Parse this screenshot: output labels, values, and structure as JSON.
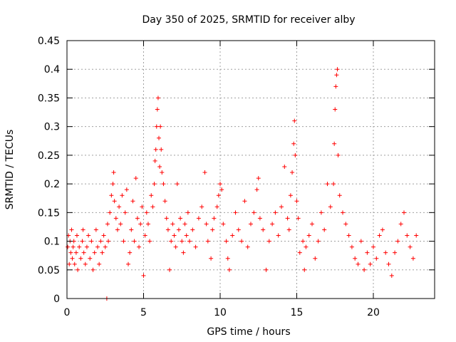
{
  "chart_data": {
    "type": "scatter",
    "title": "Day 350 of 2025, SRMTID for receiver alby",
    "xlabel": "GPS time / hours",
    "ylabel": "SRMTID / TECUs",
    "xlim": [
      0,
      24
    ],
    "ylim": [
      0,
      0.45
    ],
    "x_ticks": [
      0,
      5,
      10,
      15,
      20
    ],
    "x_tick_labels": [
      "0",
      "5",
      "10",
      "15",
      "20"
    ],
    "y_ticks": [
      0,
      0.05,
      0.1,
      0.15,
      0.2,
      0.25,
      0.3,
      0.35,
      0.4,
      0.45
    ],
    "y_tick_labels": [
      "0",
      "0.05",
      "0.1",
      "0.15",
      "0.2",
      "0.25",
      "0.3",
      "0.35",
      "0.4",
      "0.45"
    ],
    "grid": true,
    "marker": "+",
    "series": [
      {
        "name": "SRMTID",
        "color": "#ff0000",
        "points": [
          [
            0.05,
            0.09
          ],
          [
            0.1,
            0.11
          ],
          [
            0.15,
            0.06
          ],
          [
            0.2,
            0.1
          ],
          [
            0.25,
            0.08
          ],
          [
            0.3,
            0.12
          ],
          [
            0.35,
            0.07
          ],
          [
            0.4,
            0.09
          ],
          [
            0.45,
            0.1
          ],
          [
            0.5,
            0.06
          ],
          [
            0.6,
            0.08
          ],
          [
            0.65,
            0.11
          ],
          [
            0.7,
            0.05
          ],
          [
            0.8,
            0.09
          ],
          [
            0.9,
            0.07
          ],
          [
            1.0,
            0.1
          ],
          [
            1.05,
            0.12
          ],
          [
            1.1,
            0.08
          ],
          [
            1.2,
            0.06
          ],
          [
            1.3,
            0.09
          ],
          [
            1.4,
            0.11
          ],
          [
            1.5,
            0.07
          ],
          [
            1.6,
            0.1
          ],
          [
            1.7,
            0.05
          ],
          [
            1.8,
            0.08
          ],
          [
            1.9,
            0.12
          ],
          [
            2.0,
            0.09
          ],
          [
            2.1,
            0.06
          ],
          [
            2.2,
            0.1
          ],
          [
            2.3,
            0.08
          ],
          [
            2.4,
            0.11
          ],
          [
            2.5,
            0.09
          ],
          [
            2.6,
            0.0
          ],
          [
            2.65,
            0.13
          ],
          [
            2.7,
            0.1
          ],
          [
            2.8,
            0.15
          ],
          [
            2.9,
            0.18
          ],
          [
            3.0,
            0.2
          ],
          [
            3.05,
            0.22
          ],
          [
            3.1,
            0.17
          ],
          [
            3.2,
            0.14
          ],
          [
            3.3,
            0.12
          ],
          [
            3.4,
            0.16
          ],
          [
            3.5,
            0.13
          ],
          [
            3.6,
            0.18
          ],
          [
            3.7,
            0.1
          ],
          [
            3.8,
            0.15
          ],
          [
            3.9,
            0.19
          ],
          [
            4.0,
            0.06
          ],
          [
            4.1,
            0.08
          ],
          [
            4.2,
            0.12
          ],
          [
            4.3,
            0.17
          ],
          [
            4.4,
            0.1
          ],
          [
            4.5,
            0.21
          ],
          [
            4.6,
            0.14
          ],
          [
            4.7,
            0.09
          ],
          [
            4.8,
            0.13
          ],
          [
            4.9,
            0.16
          ],
          [
            5.0,
            0.04
          ],
          [
            5.1,
            0.11
          ],
          [
            5.2,
            0.15
          ],
          [
            5.3,
            0.13
          ],
          [
            5.4,
            0.1
          ],
          [
            5.5,
            0.18
          ],
          [
            5.6,
            0.16
          ],
          [
            5.7,
            0.2
          ],
          [
            5.75,
            0.24
          ],
          [
            5.8,
            0.26
          ],
          [
            5.85,
            0.3
          ],
          [
            5.9,
            0.33
          ],
          [
            5.95,
            0.35
          ],
          [
            6.0,
            0.28
          ],
          [
            6.05,
            0.23
          ],
          [
            6.1,
            0.3
          ],
          [
            6.15,
            0.26
          ],
          [
            6.2,
            0.22
          ],
          [
            6.3,
            0.2
          ],
          [
            6.4,
            0.17
          ],
          [
            6.5,
            0.14
          ],
          [
            6.6,
            0.12
          ],
          [
            6.7,
            0.05
          ],
          [
            6.8,
            0.1
          ],
          [
            6.9,
            0.13
          ],
          [
            7.0,
            0.11
          ],
          [
            7.1,
            0.09
          ],
          [
            7.2,
            0.2
          ],
          [
            7.3,
            0.12
          ],
          [
            7.4,
            0.14
          ],
          [
            7.5,
            0.1
          ],
          [
            7.6,
            0.08
          ],
          [
            7.7,
            0.13
          ],
          [
            7.8,
            0.11
          ],
          [
            7.9,
            0.15
          ],
          [
            8.0,
            0.1
          ],
          [
            8.2,
            0.12
          ],
          [
            8.4,
            0.09
          ],
          [
            8.6,
            0.14
          ],
          [
            8.8,
            0.16
          ],
          [
            9.0,
            0.22
          ],
          [
            9.1,
            0.13
          ],
          [
            9.2,
            0.1
          ],
          [
            9.4,
            0.07
          ],
          [
            9.5,
            0.12
          ],
          [
            9.6,
            0.14
          ],
          [
            9.8,
            0.16
          ],
          [
            9.9,
            0.18
          ],
          [
            10.0,
            0.2
          ],
          [
            10.1,
            0.19
          ],
          [
            10.2,
            0.13
          ],
          [
            10.4,
            0.1
          ],
          [
            10.5,
            0.07
          ],
          [
            10.6,
            0.05
          ],
          [
            10.8,
            0.11
          ],
          [
            11.0,
            0.15
          ],
          [
            11.2,
            0.12
          ],
          [
            11.4,
            0.1
          ],
          [
            11.6,
            0.17
          ],
          [
            11.8,
            0.09
          ],
          [
            12.0,
            0.13
          ],
          [
            12.2,
            0.15
          ],
          [
            12.4,
            0.19
          ],
          [
            12.5,
            0.21
          ],
          [
            12.6,
            0.14
          ],
          [
            12.8,
            0.12
          ],
          [
            13.0,
            0.05
          ],
          [
            13.2,
            0.1
          ],
          [
            13.4,
            0.13
          ],
          [
            13.6,
            0.15
          ],
          [
            13.8,
            0.11
          ],
          [
            14.0,
            0.16
          ],
          [
            14.2,
            0.23
          ],
          [
            14.4,
            0.14
          ],
          [
            14.5,
            0.12
          ],
          [
            14.6,
            0.18
          ],
          [
            14.7,
            0.22
          ],
          [
            14.8,
            0.27
          ],
          [
            14.85,
            0.31
          ],
          [
            14.9,
            0.25
          ],
          [
            15.0,
            0.17
          ],
          [
            15.1,
            0.14
          ],
          [
            15.2,
            0.08
          ],
          [
            15.4,
            0.1
          ],
          [
            15.5,
            0.05
          ],
          [
            15.6,
            0.09
          ],
          [
            15.8,
            0.11
          ],
          [
            16.0,
            0.13
          ],
          [
            16.2,
            0.07
          ],
          [
            16.4,
            0.1
          ],
          [
            16.6,
            0.15
          ],
          [
            16.8,
            0.12
          ],
          [
            17.0,
            0.2
          ],
          [
            17.2,
            0.16
          ],
          [
            17.4,
            0.2
          ],
          [
            17.45,
            0.27
          ],
          [
            17.5,
            0.33
          ],
          [
            17.55,
            0.37
          ],
          [
            17.6,
            0.39
          ],
          [
            17.65,
            0.4
          ],
          [
            17.7,
            0.25
          ],
          [
            17.8,
            0.18
          ],
          [
            18.0,
            0.15
          ],
          [
            18.2,
            0.13
          ],
          [
            18.4,
            0.11
          ],
          [
            18.6,
            0.09
          ],
          [
            18.8,
            0.07
          ],
          [
            19.0,
            0.06
          ],
          [
            19.2,
            0.1
          ],
          [
            19.4,
            0.05
          ],
          [
            19.6,
            0.08
          ],
          [
            19.8,
            0.06
          ],
          [
            20.0,
            0.09
          ],
          [
            20.2,
            0.07
          ],
          [
            20.4,
            0.11
          ],
          [
            20.6,
            0.12
          ],
          [
            20.8,
            0.08
          ],
          [
            21.0,
            0.06
          ],
          [
            21.2,
            0.04
          ],
          [
            21.4,
            0.08
          ],
          [
            21.6,
            0.1
          ],
          [
            21.8,
            0.13
          ],
          [
            22.0,
            0.15
          ],
          [
            22.2,
            0.11
          ],
          [
            22.4,
            0.09
          ],
          [
            22.6,
            0.07
          ],
          [
            22.8,
            0.11
          ]
        ]
      }
    ]
  }
}
